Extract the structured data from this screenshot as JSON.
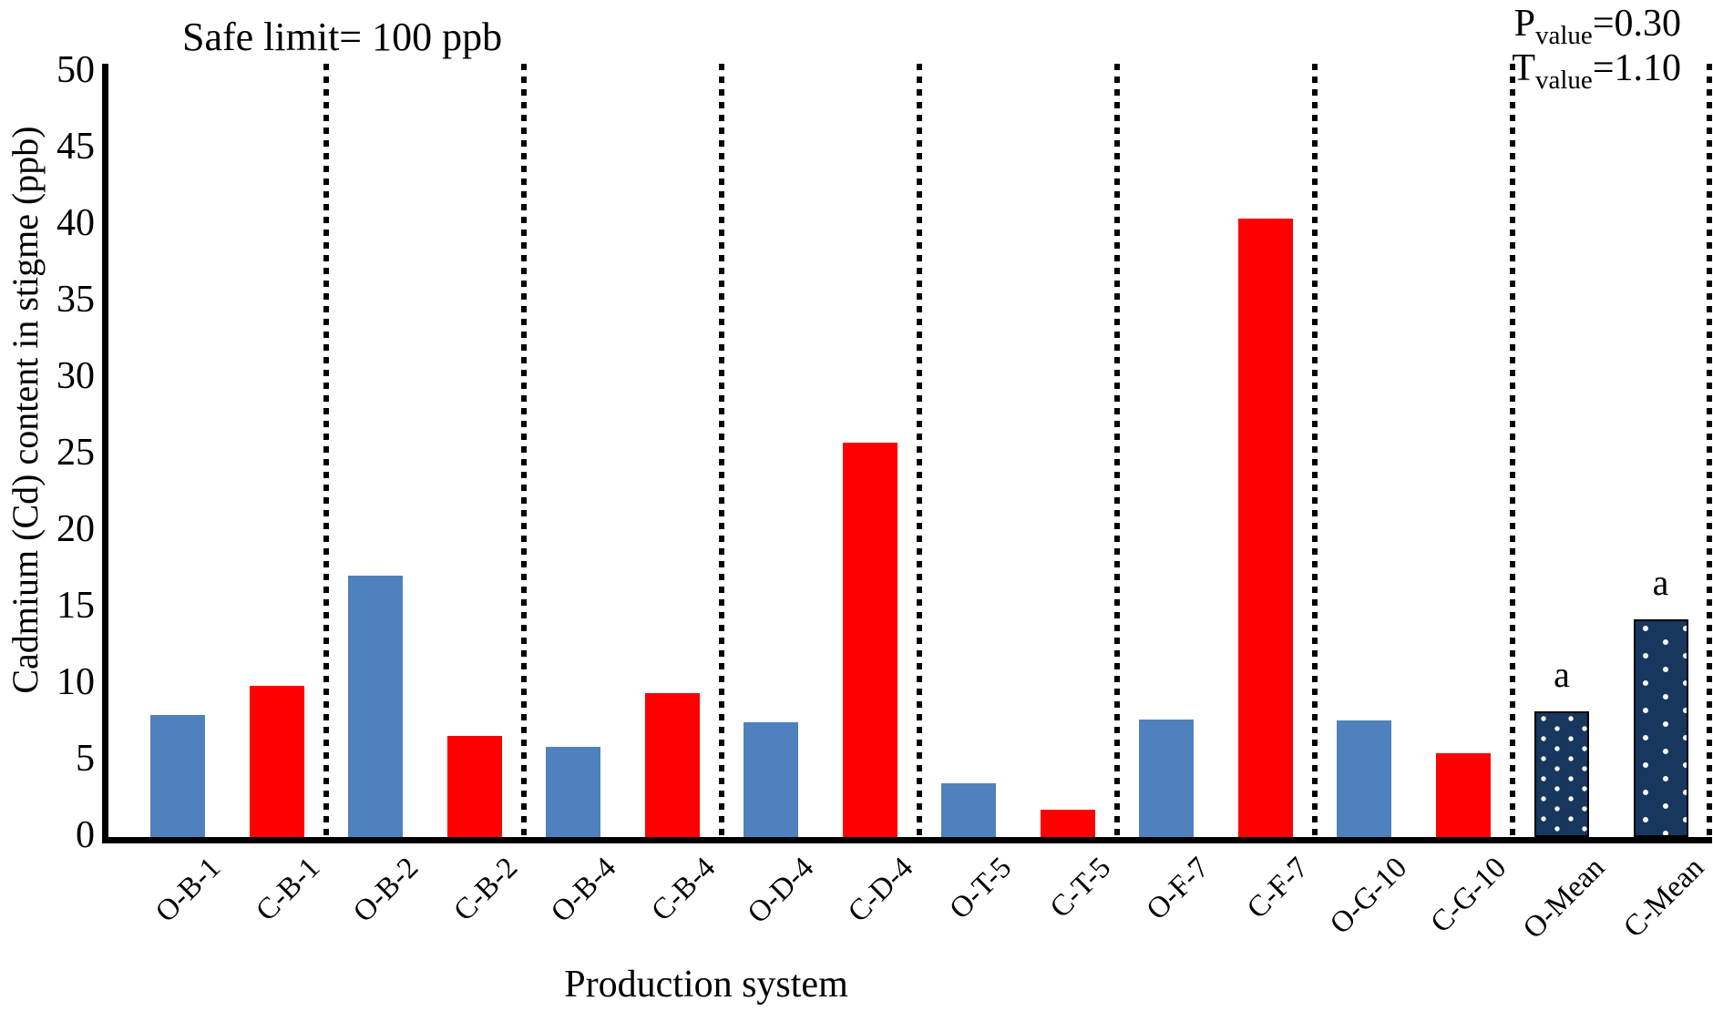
{
  "figure": {
    "safe_limit_note": "Safe limit= 100 ppb",
    "stats": {
      "p_base": "P",
      "p_sub": "value",
      "p_rest": "=0.30",
      "t_base": "T",
      "t_sub": "value",
      "t_rest": "=1.10"
    },
    "y_axis_title": "Cadmium (Cd) content in stigme (ppb)",
    "x_axis_title": "Production system"
  },
  "chart_data": {
    "type": "bar",
    "xlabel": "Production system",
    "ylabel": "Cadmium (Cd) content in stigme (ppb)",
    "ylim": [
      0,
      50
    ],
    "ytick_interval": 5,
    "yticks": [
      "0",
      "5",
      "10",
      "15",
      "20",
      "25",
      "30",
      "35",
      "40",
      "45",
      "50"
    ],
    "legend_position": "none",
    "grid": "dotted vertical separator after each O/C pair and at right edge",
    "annotation_top_left": "Safe limit= 100 ppb",
    "stats_annotation": {
      "P_value": 0.3,
      "T_value": 1.1
    },
    "categories": [
      "O-B-1",
      "C-B-1",
      "O-B-2",
      "C-B-2",
      "O-B-4",
      "C-B-4",
      "O-D-4",
      "C-D-4",
      "O-T-5",
      "C-T-5",
      "O-F-7",
      "C-F-7",
      "O-G-10",
      "C-G-10",
      "O-Mean",
      "C-Mean"
    ],
    "values": [
      8.0,
      9.9,
      17.1,
      6.6,
      5.9,
      9.4,
      7.5,
      25.8,
      3.5,
      1.8,
      7.7,
      40.4,
      7.6,
      5.5,
      8.2,
      14.2
    ],
    "colors": {
      "organic": "#4E81BD",
      "conventional": "#FE0000",
      "mean_fill": "#17375E",
      "mean_dot": "#FFFFFF"
    },
    "bars": [
      {
        "label": "O-B-1",
        "value": 8.0,
        "style": "organic"
      },
      {
        "label": "C-B-1",
        "value": 9.9,
        "style": "conventional"
      },
      {
        "label": "O-B-2",
        "value": 17.1,
        "style": "organic"
      },
      {
        "label": "C-B-2",
        "value": 6.6,
        "style": "conventional"
      },
      {
        "label": "O-B-4",
        "value": 5.9,
        "style": "organic"
      },
      {
        "label": "C-B-4",
        "value": 9.4,
        "style": "conventional"
      },
      {
        "label": "O-D-4",
        "value": 7.5,
        "style": "organic"
      },
      {
        "label": "C-D-4",
        "value": 25.8,
        "style": "conventional"
      },
      {
        "label": "O-T-5",
        "value": 3.5,
        "style": "organic"
      },
      {
        "label": "C-T-5",
        "value": 1.8,
        "style": "conventional"
      },
      {
        "label": "O-F-7",
        "value": 7.7,
        "style": "organic"
      },
      {
        "label": "C-F-7",
        "value": 40.4,
        "style": "conventional"
      },
      {
        "label": "O-G-10",
        "value": 7.6,
        "style": "organic"
      },
      {
        "label": "C-G-10",
        "value": 5.5,
        "style": "conventional"
      },
      {
        "label": "O-Mean",
        "value": 8.2,
        "style": "organic_mean",
        "note": "a"
      },
      {
        "label": "C-Mean",
        "value": 14.2,
        "style": "conventional_mean",
        "note": "a"
      }
    ]
  }
}
